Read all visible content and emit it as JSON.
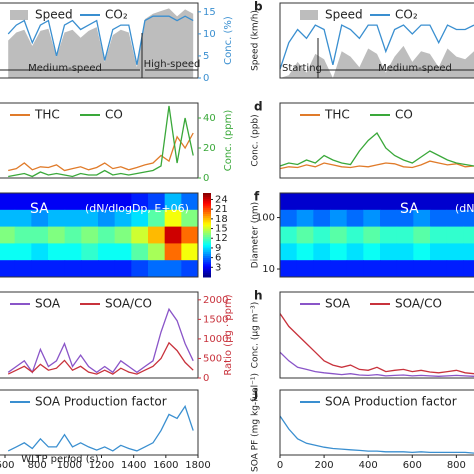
{
  "chart_data": [
    {
      "type": "line",
      "x": [
        620,
        670,
        720,
        770,
        820,
        870,
        920,
        970,
        1020,
        1070,
        1120,
        1170,
        1220,
        1270,
        1320,
        1370,
        1420,
        1470,
        1520,
        1570,
        1620,
        1670,
        1720,
        1770
      ],
      "xlim": [
        600,
        1800
      ],
      "ylim": [
        0,
        140
      ],
      "y2lim": [
        0,
        17
      ],
      "y2ticks": [
        0,
        5,
        10,
        15
      ],
      "y2label": "Conc. (%)",
      "series": [
        {
          "name": "Speed",
          "color": "#bdbdbd",
          "style": "area",
          "values": [
            70,
            85,
            90,
            60,
            88,
            92,
            40,
            85,
            90,
            75,
            88,
            95,
            30,
            80,
            90,
            85,
            20,
            110,
            120,
            125,
            130,
            115,
            128,
            120
          ]
        },
        {
          "name": "CO₂",
          "color": "#3a8fd0",
          "axis": "y2",
          "values": [
            10,
            12,
            13,
            8,
            12,
            13,
            5,
            12,
            13,
            11,
            12,
            13,
            4,
            11,
            12,
            12,
            3,
            13,
            14,
            14,
            14,
            13,
            14,
            13
          ]
        }
      ],
      "annotations": [
        "Medium-speed",
        "High-speed"
      ]
    },
    {
      "type": "line",
      "letter": "b",
      "x": [
        0,
        40,
        80,
        120,
        160,
        200,
        240,
        280,
        320,
        360,
        400,
        440,
        480,
        520,
        560,
        600,
        640,
        680,
        720,
        760,
        800,
        840,
        880
      ],
      "xlim": [
        0,
        880
      ],
      "ylim": [
        0,
        140
      ],
      "y2lim": [
        0,
        17
      ],
      "ylabel": "Speed (km/h)",
      "series": [
        {
          "name": "Speed",
          "color": "#bdbdbd",
          "style": "area",
          "values": [
            0,
            5,
            30,
            10,
            45,
            35,
            0,
            50,
            40,
            20,
            55,
            45,
            10,
            40,
            60,
            30,
            50,
            45,
            20,
            55,
            40,
            35,
            50
          ]
        },
        {
          "name": "CO₂",
          "color": "#3a8fd0",
          "axis": "y2",
          "values": [
            2,
            8,
            11,
            9,
            12,
            11,
            3,
            12,
            11,
            9,
            12,
            12,
            6,
            11,
            12,
            10,
            12,
            12,
            8,
            12,
            11,
            11,
            12
          ]
        }
      ],
      "annotations": [
        "Starting",
        "Medium-speed"
      ]
    },
    {
      "type": "line",
      "x": [
        620,
        670,
        720,
        770,
        820,
        870,
        920,
        970,
        1020,
        1070,
        1120,
        1170,
        1220,
        1270,
        1320,
        1370,
        1420,
        1470,
        1520,
        1570,
        1620,
        1670,
        1720,
        1770
      ],
      "xlim": [
        600,
        1800
      ],
      "ylim": [
        0,
        200
      ],
      "y2lim": [
        0,
        50
      ],
      "y2ticks": [
        0,
        20,
        40
      ],
      "y2label": "Conc. (ppm)",
      "series": [
        {
          "name": "THC",
          "color": "#e07b2a",
          "values": [
            20,
            25,
            40,
            22,
            30,
            28,
            35,
            20,
            25,
            30,
            22,
            28,
            40,
            25,
            30,
            22,
            28,
            35,
            40,
            60,
            45,
            110,
            80,
            120
          ]
        },
        {
          "name": "CO",
          "color": "#3aa83a",
          "axis": "y2",
          "values": [
            1,
            2,
            3,
            1,
            4,
            2,
            3,
            2,
            1,
            3,
            2,
            2,
            5,
            2,
            3,
            2,
            3,
            4,
            5,
            8,
            48,
            10,
            40,
            15
          ]
        }
      ]
    },
    {
      "type": "line",
      "letter": "d",
      "x": [
        0,
        40,
        80,
        120,
        160,
        200,
        240,
        280,
        320,
        360,
        400,
        440,
        480,
        520,
        560,
        600,
        640,
        680,
        720,
        760,
        800,
        840,
        880
      ],
      "xlim": [
        0,
        880
      ],
      "ylim": [
        0,
        200
      ],
      "y2lim": [
        0,
        50
      ],
      "ylabel": "Conc. (ppb)",
      "series": [
        {
          "name": "THC",
          "color": "#e07b2a",
          "values": [
            25,
            30,
            28,
            35,
            30,
            40,
            35,
            30,
            28,
            32,
            30,
            35,
            40,
            38,
            30,
            28,
            35,
            45,
            40,
            35,
            38,
            30,
            32
          ]
        },
        {
          "name": "CO",
          "color": "#3aa83a",
          "axis": "y2",
          "values": [
            8,
            10,
            9,
            12,
            10,
            15,
            12,
            10,
            9,
            18,
            25,
            30,
            20,
            15,
            12,
            10,
            14,
            18,
            15,
            12,
            10,
            9,
            8
          ]
        }
      ]
    },
    {
      "type": "heatmap",
      "title": "SA",
      "subtitle": "(dN/dlogDp, E+06)",
      "clim": [
        0,
        26
      ],
      "cticks": [
        3,
        6,
        9,
        12,
        15,
        18,
        21,
        24
      ],
      "z": [
        [
          3,
          3,
          3,
          3,
          3,
          3,
          3,
          3,
          4,
          5,
          8,
          6
        ],
        [
          8,
          8,
          7,
          8,
          8,
          8,
          7,
          8,
          9,
          12,
          16,
          13
        ],
        [
          13,
          12,
          12,
          13,
          12,
          13,
          12,
          13,
          15,
          18,
          24,
          20
        ],
        [
          10,
          10,
          9,
          10,
          10,
          11,
          10,
          10,
          12,
          14,
          20,
          16
        ],
        [
          4,
          4,
          4,
          4,
          4,
          4,
          4,
          4,
          5,
          6,
          6,
          5
        ]
      ]
    },
    {
      "type": "heatmap",
      "letter": "f",
      "title": "SA",
      "subtitle": "(dN/dlogDp, E+06)",
      "clim": [
        0,
        26
      ],
      "ylim": [
        7,
        300
      ],
      "log_y": true,
      "yticks": [
        10,
        100
      ],
      "ylabel": "Diameter (nm)",
      "z": [
        [
          2,
          2,
          2,
          2,
          2,
          2,
          2,
          2,
          2,
          2,
          2,
          2
        ],
        [
          6,
          7,
          6,
          7,
          6,
          7,
          6,
          6,
          7,
          6,
          6,
          6
        ],
        [
          11,
          12,
          11,
          12,
          11,
          12,
          11,
          11,
          12,
          11,
          11,
          11
        ],
        [
          9,
          10,
          9,
          10,
          9,
          10,
          9,
          9,
          10,
          9,
          9,
          9
        ],
        [
          4,
          4,
          4,
          4,
          4,
          4,
          4,
          4,
          4,
          4,
          4,
          4
        ]
      ]
    },
    {
      "type": "line",
      "x": [
        620,
        670,
        720,
        770,
        820,
        870,
        920,
        970,
        1020,
        1070,
        1120,
        1170,
        1220,
        1270,
        1320,
        1370,
        1420,
        1470,
        1520,
        1570,
        1620,
        1670,
        1720,
        1770
      ],
      "xlim": [
        600,
        1800
      ],
      "ylim": [
        0,
        15
      ],
      "y2lim": [
        0,
        2200
      ],
      "y2ticks": [
        0,
        500,
        1000,
        1500,
        2000
      ],
      "y2label": "Ratio (μg · ppm)",
      "series": [
        {
          "name": "SOA",
          "color": "#8a55c8",
          "values": [
            1,
            2,
            3,
            1,
            5,
            2,
            3,
            6,
            2,
            4,
            2,
            1,
            2,
            1,
            3,
            2,
            1,
            2,
            3,
            8,
            12,
            10,
            6,
            3
          ]
        },
        {
          "name": "SOA/CO",
          "color": "#c8323c",
          "axis": "y2",
          "values": [
            100,
            200,
            300,
            150,
            350,
            200,
            250,
            450,
            200,
            300,
            150,
            100,
            200,
            100,
            250,
            150,
            100,
            200,
            300,
            500,
            900,
            700,
            400,
            200
          ]
        }
      ]
    },
    {
      "type": "line",
      "letter": "h",
      "x": [
        0,
        40,
        80,
        120,
        160,
        200,
        240,
        280,
        320,
        360,
        400,
        440,
        480,
        520,
        560,
        600,
        640,
        680,
        720,
        760,
        800,
        840,
        880
      ],
      "xlim": [
        0,
        880
      ],
      "ylim": [
        0,
        200
      ],
      "ylabel": "Conc. (μg m⁻³)",
      "series": [
        {
          "name": "SOA",
          "color": "#8a55c8",
          "values": [
            60,
            40,
            25,
            20,
            15,
            12,
            10,
            8,
            10,
            7,
            6,
            8,
            5,
            6,
            7,
            5,
            6,
            5,
            4,
            5,
            6,
            5,
            4
          ]
        },
        {
          "name": "SOA/CO",
          "color": "#c8323c",
          "values": [
            150,
            120,
            100,
            80,
            60,
            40,
            30,
            25,
            30,
            20,
            18,
            25,
            15,
            18,
            20,
            15,
            18,
            14,
            12,
            15,
            18,
            12,
            10
          ]
        }
      ]
    },
    {
      "type": "line",
      "x": [
        620,
        670,
        720,
        770,
        820,
        870,
        920,
        970,
        1020,
        1070,
        1120,
        1170,
        1220,
        1270,
        1320,
        1370,
        1420,
        1470,
        1520,
        1570,
        1620,
        1670,
        1720,
        1770
      ],
      "xlim": [
        600,
        1800
      ],
      "ylim": [
        0,
        8
      ],
      "xticks": [
        600,
        800,
        1000,
        1200,
        1400,
        1600,
        1800
      ],
      "xlabel": "WLTP period (s)",
      "series": [
        {
          "name": "SOA Production factor",
          "color": "#3a8fd0",
          "values": [
            0.5,
            1,
            1.5,
            0.8,
            2,
            1,
            1,
            2.5,
            1,
            1.5,
            1,
            0.6,
            1,
            0.5,
            1.2,
            0.8,
            0.5,
            1,
            1.5,
            3,
            5,
            4.5,
            6,
            3
          ]
        }
      ]
    },
    {
      "type": "line",
      "letter": "j",
      "x": [
        0,
        40,
        80,
        120,
        160,
        200,
        240,
        280,
        320,
        360,
        400,
        440,
        480,
        520,
        560,
        600,
        640,
        680,
        720,
        760,
        800,
        840,
        880
      ],
      "xlim": [
        0,
        880
      ],
      "ylim": [
        0,
        100
      ],
      "xticks": [
        0,
        200,
        400,
        600,
        800
      ],
      "ylabel": "SOA PF (mg kg-fuel⁻¹)",
      "series": [
        {
          "name": "SOA Production factor",
          "color": "#3a8fd0",
          "values": [
            60,
            40,
            25,
            18,
            15,
            12,
            10,
            9,
            8,
            7,
            6,
            6,
            5,
            5,
            5,
            4,
            5,
            4,
            4,
            4,
            4,
            4,
            3
          ]
        }
      ]
    }
  ]
}
